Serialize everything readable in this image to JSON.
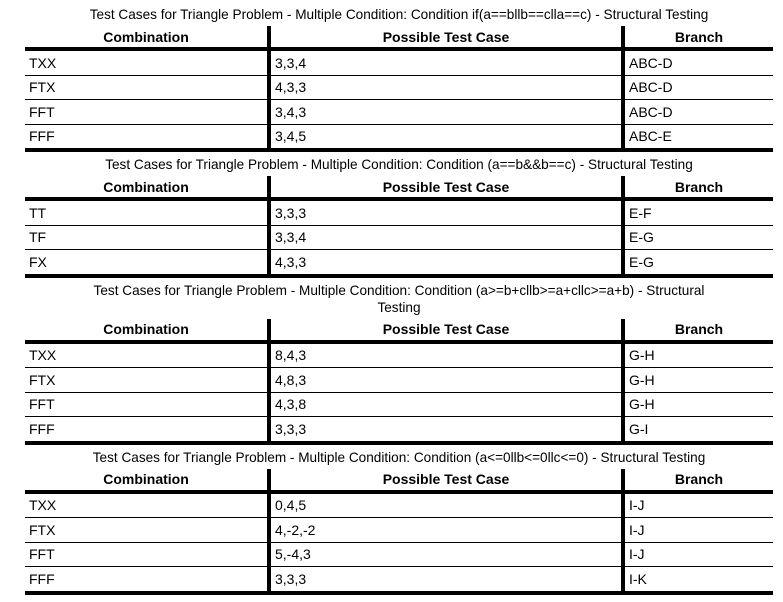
{
  "document": {
    "tables": [
      {
        "title_lines": [
          "Test Cases for Triangle Problem - Multiple Condition: Condition if(a==bllb==clla==c) - Structural Testing"
        ],
        "headers": [
          "Combination",
          "Possible Test Case",
          "Branch"
        ],
        "rows": [
          [
            "TXX",
            "3,3,4",
            "ABC-D"
          ],
          [
            "FTX",
            "4,3,3",
            "ABC-D"
          ],
          [
            "FFT",
            "3,4,3",
            "ABC-D"
          ],
          [
            "FFF",
            "3,4,5",
            "ABC-E"
          ]
        ]
      },
      {
        "title_lines": [
          "Test Cases for Triangle Problem - Multiple Condition: Condition (a==b&&b==c) - Structural Testing"
        ],
        "headers": [
          "Combination",
          "Possible Test Case",
          "Branch"
        ],
        "rows": [
          [
            "TT",
            "3,3,3",
            "E-F"
          ],
          [
            "TF",
            "3,3,4",
            "E-G"
          ],
          [
            "FX",
            "4,3,3",
            "E-G"
          ]
        ]
      },
      {
        "title_lines": [
          "Test Cases for Triangle Problem - Multiple Condition: Condition (a>=b+cllb>=a+cllc>=a+b) - Structural",
          "Testing"
        ],
        "headers": [
          "Combination",
          "Possible Test Case",
          "Branch"
        ],
        "rows": [
          [
            "TXX",
            "8,4,3",
            "G-H"
          ],
          [
            "FTX",
            "4,8,3",
            "G-H"
          ],
          [
            "FFT",
            "4,3,8",
            "G-H"
          ],
          [
            "FFF",
            "3,3,3",
            "G-I"
          ]
        ]
      },
      {
        "title_lines": [
          "Test Cases for Triangle Problem - Multiple Condition: Condition (a<=0llb<=0llc<=0) - Structural Testing"
        ],
        "headers": [
          "Combination",
          "Possible Test Case",
          "Branch"
        ],
        "rows": [
          [
            "TXX",
            "0,4,5",
            "I-J"
          ],
          [
            "FTX",
            "4,-2,-2",
            "I-J"
          ],
          [
            "FFT",
            "5,-4,3",
            "I-J"
          ],
          [
            "FFF",
            "3,3,3",
            "I-K"
          ]
        ]
      }
    ]
  }
}
